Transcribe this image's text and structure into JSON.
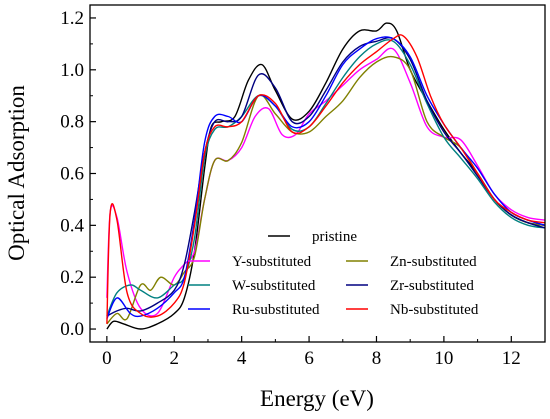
{
  "chart_data": {
    "type": "line",
    "title": "",
    "xlabel": "Energy (eV)",
    "ylabel": "Optical Adsorption",
    "xlim": [
      -0.5,
      13
    ],
    "ylim": [
      -0.05,
      1.25
    ],
    "xticks": [
      0,
      2,
      4,
      6,
      8,
      10,
      12
    ],
    "yticks": [
      0.0,
      0.2,
      0.4,
      0.6,
      0.8,
      1.0,
      1.2
    ],
    "xtick_labels": [
      "0",
      "2",
      "4",
      "6",
      "8",
      "10",
      "12"
    ],
    "ytick_labels": [
      "0.0",
      "0.2",
      "0.4",
      "0.6",
      "0.8",
      "1.0",
      "1.2"
    ],
    "grid": false,
    "legend_position": "bottom-right",
    "series": [
      {
        "name": "pristine",
        "color": "#000000",
        "x": [
          0,
          0.2,
          0.5,
          1,
          1.5,
          2,
          2.3,
          2.6,
          2.9,
          3.1,
          3.4,
          3.8,
          4.2,
          4.6,
          5.0,
          5.5,
          6.0,
          6.5,
          7.0,
          7.5,
          8.0,
          8.3,
          8.6,
          9.0,
          9.5,
          10,
          10.5,
          11,
          11.5,
          12,
          12.5,
          13
        ],
        "y": [
          0.0,
          0.03,
          0.02,
          0.0,
          0.02,
          0.06,
          0.12,
          0.3,
          0.62,
          0.78,
          0.8,
          0.82,
          0.96,
          1.02,
          0.92,
          0.81,
          0.84,
          0.95,
          1.08,
          1.15,
          1.15,
          1.18,
          1.15,
          1.0,
          0.88,
          0.77,
          0.68,
          0.6,
          0.5,
          0.44,
          0.41,
          0.4
        ]
      },
      {
        "name": "Y-substituted",
        "color": "#ff00ff",
        "x": [
          0,
          0.1,
          0.3,
          0.6,
          1,
          1.5,
          2,
          2.3,
          2.6,
          2.9,
          3.2,
          3.6,
          4.0,
          4.4,
          4.8,
          5.2,
          5.6,
          6,
          6.5,
          7,
          7.5,
          8,
          8.5,
          9,
          9.5,
          10,
          10.5,
          11,
          11.5,
          12,
          12.5,
          13
        ],
        "y": [
          0.12,
          0.45,
          0.43,
          0.22,
          0.08,
          0.06,
          0.2,
          0.25,
          0.3,
          0.5,
          0.65,
          0.65,
          0.7,
          0.82,
          0.85,
          0.75,
          0.75,
          0.83,
          0.88,
          0.94,
          1.0,
          1.04,
          1.08,
          0.95,
          0.78,
          0.74,
          0.73,
          0.63,
          0.52,
          0.46,
          0.43,
          0.42
        ]
      },
      {
        "name": "Zn-substituted",
        "color": "#808000",
        "x": [
          0,
          0.3,
          0.6,
          1,
          1.3,
          1.6,
          2,
          2.3,
          2.6,
          2.9,
          3.2,
          3.6,
          4.0,
          4.5,
          5.0,
          5.5,
          6,
          6.5,
          7,
          7.5,
          8,
          8.5,
          9,
          9.5,
          10,
          10.5,
          11,
          11.5,
          12,
          12.5,
          13
        ],
        "y": [
          0.02,
          0.06,
          0.04,
          0.17,
          0.15,
          0.2,
          0.17,
          0.22,
          0.28,
          0.5,
          0.65,
          0.65,
          0.72,
          0.9,
          0.83,
          0.76,
          0.76,
          0.82,
          0.88,
          0.97,
          1.03,
          1.05,
          1.0,
          0.8,
          0.74,
          0.7,
          0.6,
          0.5,
          0.44,
          0.41,
          0.4
        ]
      },
      {
        "name": "W-substituted",
        "color": "#008080",
        "x": [
          0,
          0.3,
          0.7,
          1,
          1.5,
          2,
          2.3,
          2.6,
          2.9,
          3.2,
          3.6,
          4.0,
          4.5,
          5.0,
          5.5,
          6,
          6.5,
          7,
          7.5,
          8,
          8.5,
          9,
          9.5,
          10,
          10.5,
          11,
          11.5,
          12,
          12.5,
          13
        ],
        "y": [
          0.05,
          0.14,
          0.17,
          0.15,
          0.12,
          0.17,
          0.2,
          0.35,
          0.66,
          0.77,
          0.78,
          0.82,
          0.9,
          0.86,
          0.77,
          0.78,
          0.87,
          0.97,
          1.05,
          1.1,
          1.11,
          1.02,
          0.87,
          0.74,
          0.66,
          0.58,
          0.49,
          0.43,
          0.4,
          0.39
        ]
      },
      {
        "name": "Zr-substituted",
        "color": "#000080",
        "x": [
          0,
          0.3,
          0.6,
          1,
          1.5,
          2,
          2.3,
          2.6,
          2.9,
          3.2,
          3.6,
          4.0,
          4.5,
          5.0,
          5.5,
          6,
          6.5,
          7,
          7.5,
          8,
          8.5,
          9,
          9.5,
          10,
          10.5,
          11,
          11.5,
          12,
          12.5,
          13
        ],
        "y": [
          0.05,
          0.07,
          0.08,
          0.07,
          0.1,
          0.15,
          0.25,
          0.45,
          0.68,
          0.8,
          0.8,
          0.82,
          0.98,
          0.93,
          0.8,
          0.82,
          0.92,
          1.03,
          1.09,
          1.11,
          1.12,
          1.04,
          0.88,
          0.76,
          0.68,
          0.59,
          0.5,
          0.44,
          0.41,
          0.39
        ]
      },
      {
        "name": "Ru-substituted",
        "color": "#0000ff",
        "x": [
          0,
          0.3,
          0.7,
          1,
          1.5,
          2,
          2.3,
          2.6,
          2.9,
          3.2,
          3.6,
          4.0,
          4.5,
          5.0,
          5.5,
          6,
          6.5,
          7,
          7.5,
          8,
          8.5,
          9,
          9.5,
          10,
          10.5,
          11,
          11.5,
          12,
          12.5,
          13
        ],
        "y": [
          0.04,
          0.12,
          0.06,
          0.05,
          0.08,
          0.14,
          0.2,
          0.42,
          0.72,
          0.82,
          0.82,
          0.8,
          0.9,
          0.86,
          0.78,
          0.8,
          0.9,
          1.02,
          1.08,
          1.12,
          1.12,
          1.05,
          0.9,
          0.79,
          0.7,
          0.62,
          0.52,
          0.45,
          0.42,
          0.4
        ]
      },
      {
        "name": "Nb-substituted",
        "color": "#ff0000",
        "x": [
          0,
          0.1,
          0.3,
          0.6,
          1,
          1.5,
          2,
          2.3,
          2.6,
          2.9,
          3.2,
          3.6,
          4.0,
          4.5,
          5.0,
          5.5,
          6,
          6.5,
          7,
          7.5,
          8,
          8.5,
          8.8,
          9.2,
          9.6,
          10,
          10.5,
          11,
          11.5,
          12,
          12.5,
          13
        ],
        "y": [
          0.02,
          0.45,
          0.42,
          0.14,
          0.06,
          0.05,
          0.1,
          0.18,
          0.4,
          0.68,
          0.78,
          0.78,
          0.8,
          0.9,
          0.87,
          0.76,
          0.78,
          0.86,
          0.95,
          1.02,
          1.07,
          1.12,
          1.13,
          1.05,
          0.9,
          0.79,
          0.7,
          0.6,
          0.5,
          0.45,
          0.42,
          0.41
        ]
      }
    ]
  }
}
